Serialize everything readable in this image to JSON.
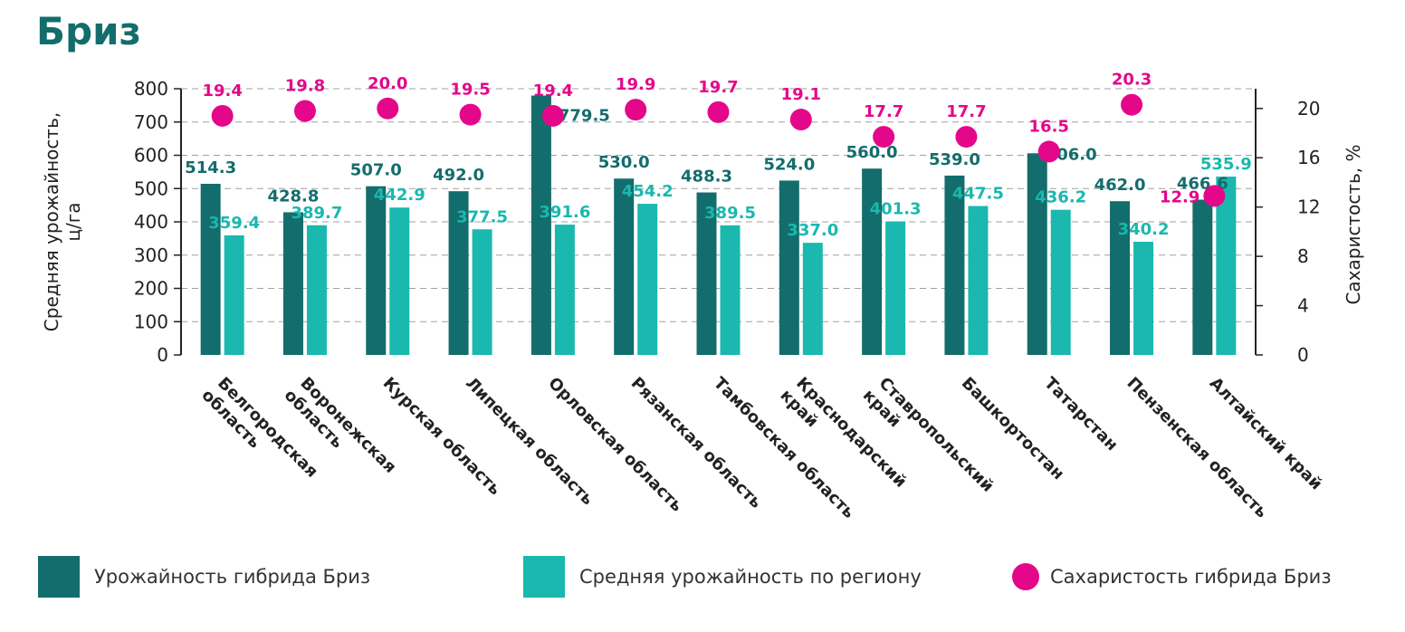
{
  "chart_data": {
    "type": "bar",
    "title": "Бриз",
    "categories": [
      "Белгородская область",
      "Воронежская область",
      "Курская область",
      "Липецкая область",
      "Орловская область",
      "Рязанская область",
      "Тамбовская область",
      "Краснодарский край",
      "Ставропольский край",
      "Башкортостан",
      "Татарстан",
      "Пензенская область",
      "Алтайский край"
    ],
    "category_lines": [
      [
        "Белгородская",
        "область"
      ],
      [
        "Воронежская",
        "область"
      ],
      [
        "Курская область"
      ],
      [
        "Липецкая область"
      ],
      [
        "Орловская область"
      ],
      [
        "Рязанская область"
      ],
      [
        "Тамбовская область"
      ],
      [
        "Краснодарский",
        "край"
      ],
      [
        "Ставропольский",
        "край"
      ],
      [
        "Башкортостан"
      ],
      [
        "Татарстан"
      ],
      [
        "Пензенская область"
      ],
      [
        "Алтайский край"
      ]
    ],
    "series": [
      {
        "name": "Урожайность гибрида Бриз",
        "type": "bar",
        "axis": "left",
        "color": "#136d6c",
        "values": [
          514.3,
          428.8,
          507.0,
          492.0,
          779.5,
          530.0,
          488.3,
          524.0,
          560.0,
          539.0,
          606.0,
          462.0,
          466.6
        ],
        "labels": [
          "514.3",
          "428.8",
          "507.0",
          "492.0",
          "779.5",
          "530.0",
          "488.3",
          "524.0",
          "560.0",
          "539.0",
          "606.0",
          "462.0",
          "466.6"
        ]
      },
      {
        "name": "Средняя урожайность по региону",
        "type": "bar",
        "axis": "left",
        "color": "#1ab8ae",
        "values": [
          359.4,
          389.7,
          442.9,
          377.5,
          391.6,
          454.2,
          389.5,
          337.0,
          401.3,
          447.5,
          436.2,
          340.2,
          535.9
        ],
        "labels": [
          "359.4",
          "389.7",
          "442.9",
          "377.5",
          "391.6",
          "454.2",
          "389.5",
          "337.0",
          "401.3",
          "447.5",
          "436.2",
          "340.2",
          "535.9"
        ]
      },
      {
        "name": "Сахаристость гибрида Бриз",
        "type": "scatter",
        "axis": "right",
        "color": "#e5078a",
        "values": [
          19.4,
          19.8,
          20.0,
          19.5,
          19.4,
          19.9,
          19.7,
          19.1,
          17.7,
          17.7,
          16.5,
          20.3,
          12.9
        ],
        "labels": [
          "19.4",
          "19.8",
          "20.0",
          "19.5",
          "19.4",
          "19.9",
          "19.7",
          "19.1",
          "17.7",
          "17.7",
          "16.5",
          "20.3",
          "12.9"
        ]
      }
    ],
    "ylabel_lines": [
      "Средняя урожайность,",
      "ц/га"
    ],
    "y2label": "Сахаристость, %",
    "ylim": [
      0,
      800
    ],
    "yticks": [
      "0",
      "100",
      "200",
      "300",
      "400",
      "500",
      "600",
      "700",
      "800"
    ],
    "y2lim": [
      0,
      21.6
    ],
    "y2ticks": [
      "0",
      "4",
      "8",
      "12",
      "16",
      "20"
    ],
    "grid": true,
    "legend_position": "bottom"
  },
  "legend": [
    {
      "label": "Урожайность гибрида Бриз",
      "color": "#136d6c",
      "shape": "square"
    },
    {
      "label": "Средняя урожайность по региону",
      "color": "#1ab8ae",
      "shape": "square"
    },
    {
      "label": "Сахаристость гибрида Бриз",
      "color": "#e5078a",
      "shape": "circle"
    }
  ]
}
